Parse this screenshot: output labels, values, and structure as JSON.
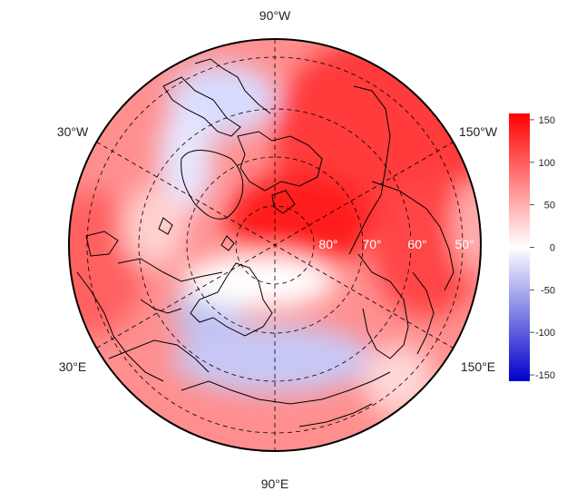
{
  "map": {
    "projection": "north-polar-stereographic",
    "longitude_labels": {
      "top": "90°W",
      "bottom": "90°E",
      "upper_left": "30°W",
      "lower_left": "30°E",
      "upper_right": "150°W",
      "lower_right": "150°E"
    },
    "latitude_labels": [
      "80°",
      "70°",
      "60°",
      "50°"
    ],
    "latitude_circles_deg": [
      80,
      70,
      60,
      50
    ],
    "meridian_lines": true,
    "coastlines_color": "#000000",
    "grid_color": "#000000"
  },
  "colorbar": {
    "ticks": [
      "150",
      "100",
      "50",
      "0",
      "-50",
      "-100",
      "-150"
    ],
    "range": [
      -160,
      160
    ],
    "colors": {
      "low": "#0000cc",
      "mid": "#ffffff",
      "high": "#ff0000"
    }
  }
}
